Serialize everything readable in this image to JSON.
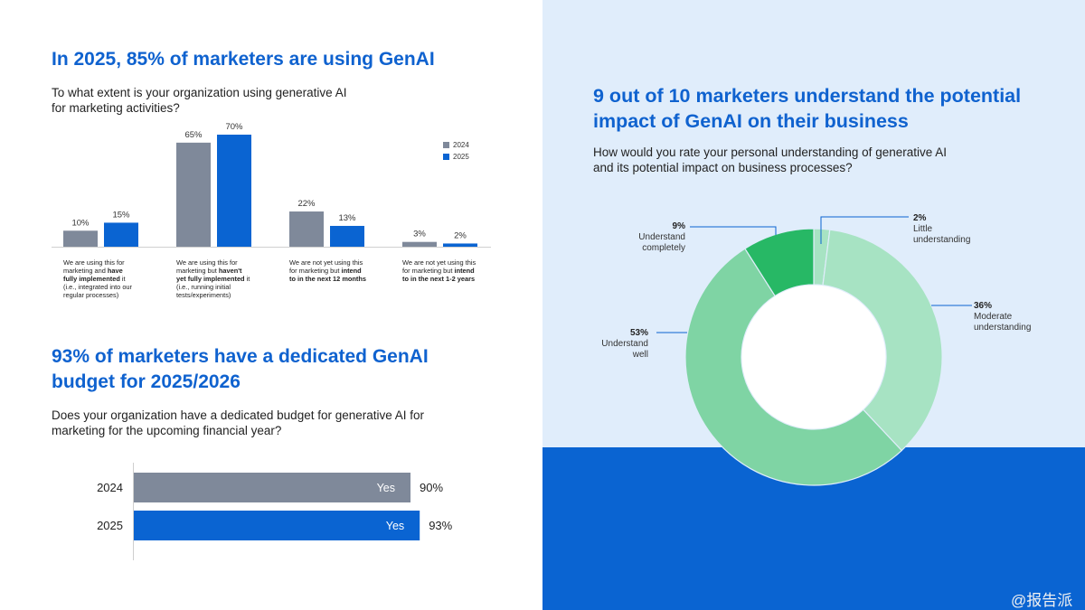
{
  "section1": {
    "title": "In 2025, 85% of marketers are using GenAI",
    "question_line1": "To what extent is your organization using generative AI",
    "question_line2": "for marketing activities?"
  },
  "section2": {
    "title_line1": "93% of marketers have a dedicated GenAI",
    "title_line2": "budget for 2025/2026",
    "question_line1": "Does your organization have a dedicated budget for generative AI for",
    "question_line2": "marketing for the upcoming financial year?"
  },
  "section3": {
    "title_line1": "9 out of 10 marketers understand the potential",
    "title_line2": "impact of GenAI on their business",
    "question_line1": "How would you rate your personal understanding of generative AI",
    "question_line2": "and its potential impact on business processes?"
  },
  "watermark": "@报告派",
  "colors": {
    "y2024": "#7f899a",
    "y2025": "#0a64d2",
    "title": "#0f62cf"
  },
  "chart_data": [
    {
      "type": "bar",
      "title": "To what extent is your organization using generative AI for marketing activities?",
      "categories": [
        [
          "We are using this for",
          "marketing and ",
          "have",
          "fully implemented",
          " it",
          "(i.e., integrated into our",
          "regular processes)"
        ],
        [
          "We are using this for",
          "marketing but ",
          "haven't",
          "yet fully implemented",
          " it",
          "(i.e., running initial",
          "tests/experiments)"
        ],
        [
          "We are not yet using this",
          "for marketing but ",
          "intend",
          "to in the next 12 months"
        ],
        [
          "We are not yet using this",
          "for marketing but ",
          "intend",
          "to in the next 1-2 years"
        ]
      ],
      "series": [
        {
          "name": "2024",
          "values": [
            10,
            65,
            22,
            3
          ],
          "labels": [
            "10%",
            "65%",
            "22%",
            "3%"
          ]
        },
        {
          "name": "2025",
          "values": [
            15,
            70,
            13,
            2
          ],
          "labels": [
            "15%",
            "70%",
            "13%",
            "2%"
          ]
        }
      ],
      "ylim": [
        0,
        70
      ],
      "legend": "top-right"
    },
    {
      "type": "bar",
      "orientation": "horizontal",
      "title": "Does your organization have a dedicated budget for generative AI for marketing for the upcoming financial year?",
      "categories": [
        "2024",
        "2025"
      ],
      "values": [
        90,
        93
      ],
      "value_labels": [
        "90%",
        "93%"
      ],
      "inner_labels": [
        "Yes",
        "Yes"
      ],
      "xlim": [
        0,
        100
      ]
    },
    {
      "type": "pie",
      "subtype": "donut",
      "title": "How would you rate your personal understanding of generative AI and its potential impact on business processes?",
      "slices": [
        {
          "pct": "2%",
          "value": 2,
          "line1": "Little",
          "line2": "understanding",
          "color": "#a7e3c3"
        },
        {
          "pct": "36%",
          "value": 36,
          "line1": "Moderate",
          "line2": "understanding",
          "color": "#a7e3c3"
        },
        {
          "pct": "53%",
          "value": 53,
          "line1": "Understand",
          "line2": "well",
          "color": "#7fd4a4"
        },
        {
          "pct": "9%",
          "value": 9,
          "line1": "Understand",
          "line2": "completely",
          "color": "#27b865"
        }
      ]
    }
  ]
}
